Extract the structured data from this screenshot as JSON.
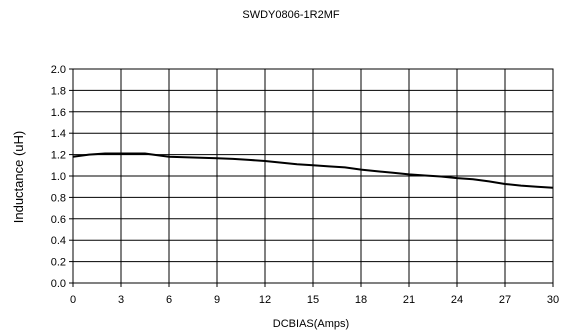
{
  "chart_data": {
    "type": "line",
    "title": "SWDY0806-1R2MF",
    "xlabel": "DCBIAS(Amps)",
    "ylabel": "Inductance (uH)",
    "xlim": [
      0,
      30
    ],
    "ylim": [
      0,
      2
    ],
    "xticks": [
      "0",
      "3",
      "6",
      "9",
      "12",
      "15",
      "18",
      "21",
      "24",
      "27",
      "30"
    ],
    "yticks": [
      "0.0",
      "0.2",
      "0.4",
      "0.6",
      "0.8",
      "1.0",
      "1.2",
      "1.4",
      "1.6",
      "1.8",
      "2.0"
    ],
    "grid": true,
    "series": [
      {
        "x": [
          0,
          1,
          2,
          3,
          4,
          4.5,
          5,
          6,
          7,
          8,
          9,
          10,
          11,
          12,
          13,
          14,
          15,
          16,
          17,
          18,
          19,
          20,
          21,
          22,
          23,
          24,
          25,
          26,
          27,
          28,
          29,
          30
        ],
        "values": [
          1.18,
          1.2,
          1.21,
          1.21,
          1.21,
          1.21,
          1.2,
          1.18,
          1.175,
          1.17,
          1.165,
          1.16,
          1.15,
          1.14,
          1.125,
          1.11,
          1.1,
          1.09,
          1.08,
          1.06,
          1.045,
          1.03,
          1.015,
          1.005,
          0.995,
          0.98,
          0.97,
          0.95,
          0.925,
          0.91,
          0.9,
          0.89
        ]
      }
    ]
  }
}
